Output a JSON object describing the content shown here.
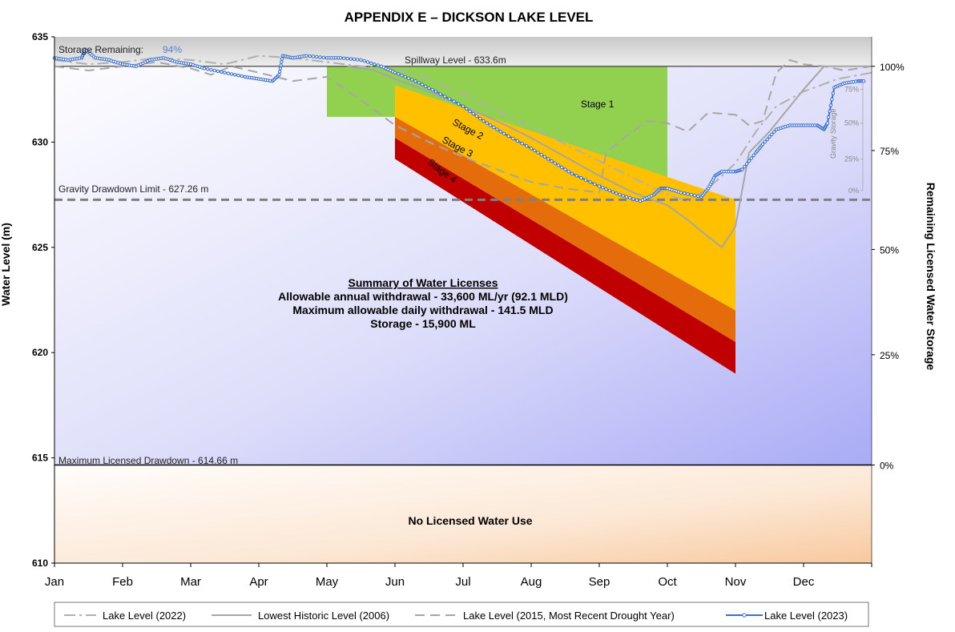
{
  "chart_data": {
    "type": "line",
    "title": "APPENDIX E – DICKSON LAKE LEVEL",
    "ylabel": "Water Level (m)",
    "y2label": "Remaining Licensed Water Storage",
    "ylim": [
      610,
      635
    ],
    "yticks": [
      610,
      615,
      620,
      625,
      630,
      635
    ],
    "xlim": [
      0,
      12
    ],
    "months": [
      "Jan",
      "Feb",
      "Mar",
      "Apr",
      "May",
      "Jun",
      "Jul",
      "Aug",
      "Sep",
      "Oct",
      "Nov",
      "Dec"
    ],
    "y2_ticks": [
      {
        "label": "0%",
        "level": 614.66
      },
      {
        "label": "25%",
        "level": 619.9
      },
      {
        "label": "50%",
        "level": 624.9
      },
      {
        "label": "75%",
        "level": 629.6
      },
      {
        "label": "100%",
        "level": 633.6
      }
    ],
    "reference_lines": [
      {
        "label": "Spillway Level - 633.6m",
        "value": 633.6
      },
      {
        "label": "Gravity Drawdown Limit - 627.26 m",
        "value": 627.26
      },
      {
        "label": "Maximum Licensed Drawdown - 614.66 m",
        "value": 614.66
      }
    ],
    "storage_remaining_label": "Storage Remaining:",
    "storage_remaining_value": "94%",
    "zones": {
      "no_use_label": "No Licensed Water Use",
      "stage1": {
        "label": "Stage 1",
        "x": [
          4.0,
          9.0
        ],
        "top": 633.6,
        "bottom_start": 631.2,
        "bottom_end": 627.26
      },
      "stages": [
        {
          "label": "Stage 2",
          "x": [
            5.0,
            10.0
          ],
          "top_start": 632.7,
          "top_end": 627.26,
          "bottom_start": 631.2,
          "bottom_end": 622.0,
          "color": "#FFC000"
        },
        {
          "label": "Stage 3",
          "x": [
            5.0,
            10.0
          ],
          "top_start": 631.2,
          "top_end": 622.0,
          "bottom_start": 630.2,
          "bottom_end": 620.5,
          "color": "#E46C0A"
        },
        {
          "label": "Stage 4",
          "x": [
            5.0,
            10.0
          ],
          "top_start": 630.2,
          "top_end": 620.5,
          "bottom_start": 629.2,
          "bottom_end": 619.0,
          "color": "#C00000"
        }
      ]
    },
    "summary": {
      "title": "Summary of Water Licenses",
      "lines": [
        "Allowable annual withdrawal - 33,600 ML/yr (92.1 MLD)",
        "Maximum allowable daily withdrawal - 141.5 MLD",
        "Storage - 15,900 ML"
      ]
    },
    "gravity_gauge": {
      "label": "Gravity Storage",
      "ticks": [
        {
          "label": "75%",
          "value": 632.5
        },
        {
          "label": "50%",
          "value": 630.9
        },
        {
          "label": "25%",
          "value": 629.2
        },
        {
          "label": "0%",
          "value": 627.7
        }
      ]
    },
    "series": [
      {
        "name": "Lake Level (2022)",
        "style": "dashdot",
        "color": "#B0B0B0",
        "x": [
          0,
          0.5,
          1.0,
          1.5,
          2.0,
          2.5,
          3.0,
          3.5,
          4.0,
          4.5,
          5.0,
          5.5,
          6.0,
          6.5,
          7.0,
          7.5,
          8.0,
          8.5,
          9.0,
          9.3,
          9.6,
          10.0,
          10.3,
          10.6,
          11.0,
          11.5,
          12.0
        ],
        "y": [
          633.9,
          633.7,
          633.8,
          634.0,
          633.9,
          633.7,
          634.1,
          634.0,
          633.8,
          633.6,
          633.5,
          633.0,
          632.3,
          631.5,
          630.7,
          629.9,
          629.1,
          628.3,
          627.5,
          627.2,
          627.8,
          629.0,
          630.5,
          631.7,
          632.4,
          633.0,
          633.3
        ]
      },
      {
        "name": "Lowest Historic Level (2006)",
        "style": "solid",
        "color": "#A6A6A6",
        "x": [
          4.3,
          4.7,
          5.0,
          5.5,
          6.0,
          6.5,
          7.0,
          7.5,
          8.0,
          8.5,
          9.0,
          9.3,
          9.6,
          9.8,
          10.0,
          10.2,
          10.5,
          11.0,
          11.3,
          11.6,
          12.0
        ],
        "y": [
          633.6,
          633.4,
          633.0,
          632.4,
          631.7,
          631.0,
          630.2,
          629.3,
          628.4,
          627.6,
          627.0,
          626.3,
          625.5,
          625.0,
          626.0,
          629.5,
          630.5,
          632.5,
          633.6,
          633.6,
          633.6
        ]
      },
      {
        "name": "Lake Level (2015, Most Recent Drought Year)",
        "style": "dashed",
        "color": "#A6A6A6",
        "x": [
          0,
          0.5,
          1.0,
          1.5,
          2.0,
          2.3,
          2.6,
          3.0,
          3.5,
          4.0,
          4.5,
          5.0,
          5.5,
          6.0,
          6.5,
          7.0,
          7.5,
          8.0,
          8.1,
          8.4,
          8.7,
          9.0,
          9.3,
          9.6,
          10.0,
          10.2,
          10.4,
          10.6,
          10.8,
          11.0,
          11.3,
          11.6,
          12.0
        ],
        "y": [
          633.6,
          633.4,
          633.6,
          633.8,
          633.5,
          633.2,
          633.6,
          633.3,
          632.9,
          633.1,
          632.0,
          630.8,
          630.0,
          629.3,
          628.7,
          628.1,
          627.8,
          627.6,
          629.5,
          630.3,
          631.0,
          630.9,
          630.5,
          631.4,
          631.3,
          630.8,
          631.0,
          633.3,
          633.9,
          633.7,
          633.6,
          633.4,
          633.6
        ]
      },
      {
        "name": "Lake Level (2023)",
        "style": "solid-markers",
        "color": "#3A6FD0",
        "x": [
          0,
          0.2,
          0.4,
          0.45,
          0.6,
          0.8,
          1.0,
          1.2,
          1.4,
          1.6,
          1.8,
          2.0,
          2.2,
          2.5,
          2.8,
          3.0,
          3.2,
          3.3,
          3.35,
          3.5,
          3.7,
          4.0,
          4.2,
          4.5,
          4.8,
          5.0,
          5.3,
          5.6,
          6.0,
          6.3,
          6.6,
          7.0,
          7.3,
          7.6,
          8.0,
          8.3,
          8.6,
          8.8,
          8.9,
          9.0,
          9.2,
          9.5,
          9.6,
          9.7,
          9.8,
          10.0,
          10.1,
          10.3,
          10.4,
          10.6,
          10.8,
          11.0,
          11.2,
          11.3,
          11.35,
          11.45,
          11.6,
          11.8,
          11.9
        ],
        "y": [
          634.0,
          633.9,
          634.0,
          634.4,
          634.0,
          633.9,
          633.7,
          633.6,
          633.9,
          634.0,
          633.8,
          633.7,
          633.5,
          633.3,
          633.1,
          633.0,
          632.9,
          633.2,
          634.1,
          634.0,
          634.1,
          634.0,
          634.0,
          633.9,
          633.6,
          633.3,
          632.9,
          632.4,
          631.7,
          631.0,
          630.4,
          629.7,
          629.1,
          628.5,
          627.9,
          627.5,
          627.2,
          627.5,
          627.8,
          627.8,
          627.6,
          627.4,
          627.8,
          628.4,
          628.6,
          628.6,
          628.7,
          629.5,
          629.9,
          630.6,
          630.8,
          630.8,
          630.8,
          630.6,
          630.9,
          632.6,
          632.8,
          632.9,
          632.9
        ]
      }
    ],
    "legend": {
      "placement": "bottom"
    }
  }
}
